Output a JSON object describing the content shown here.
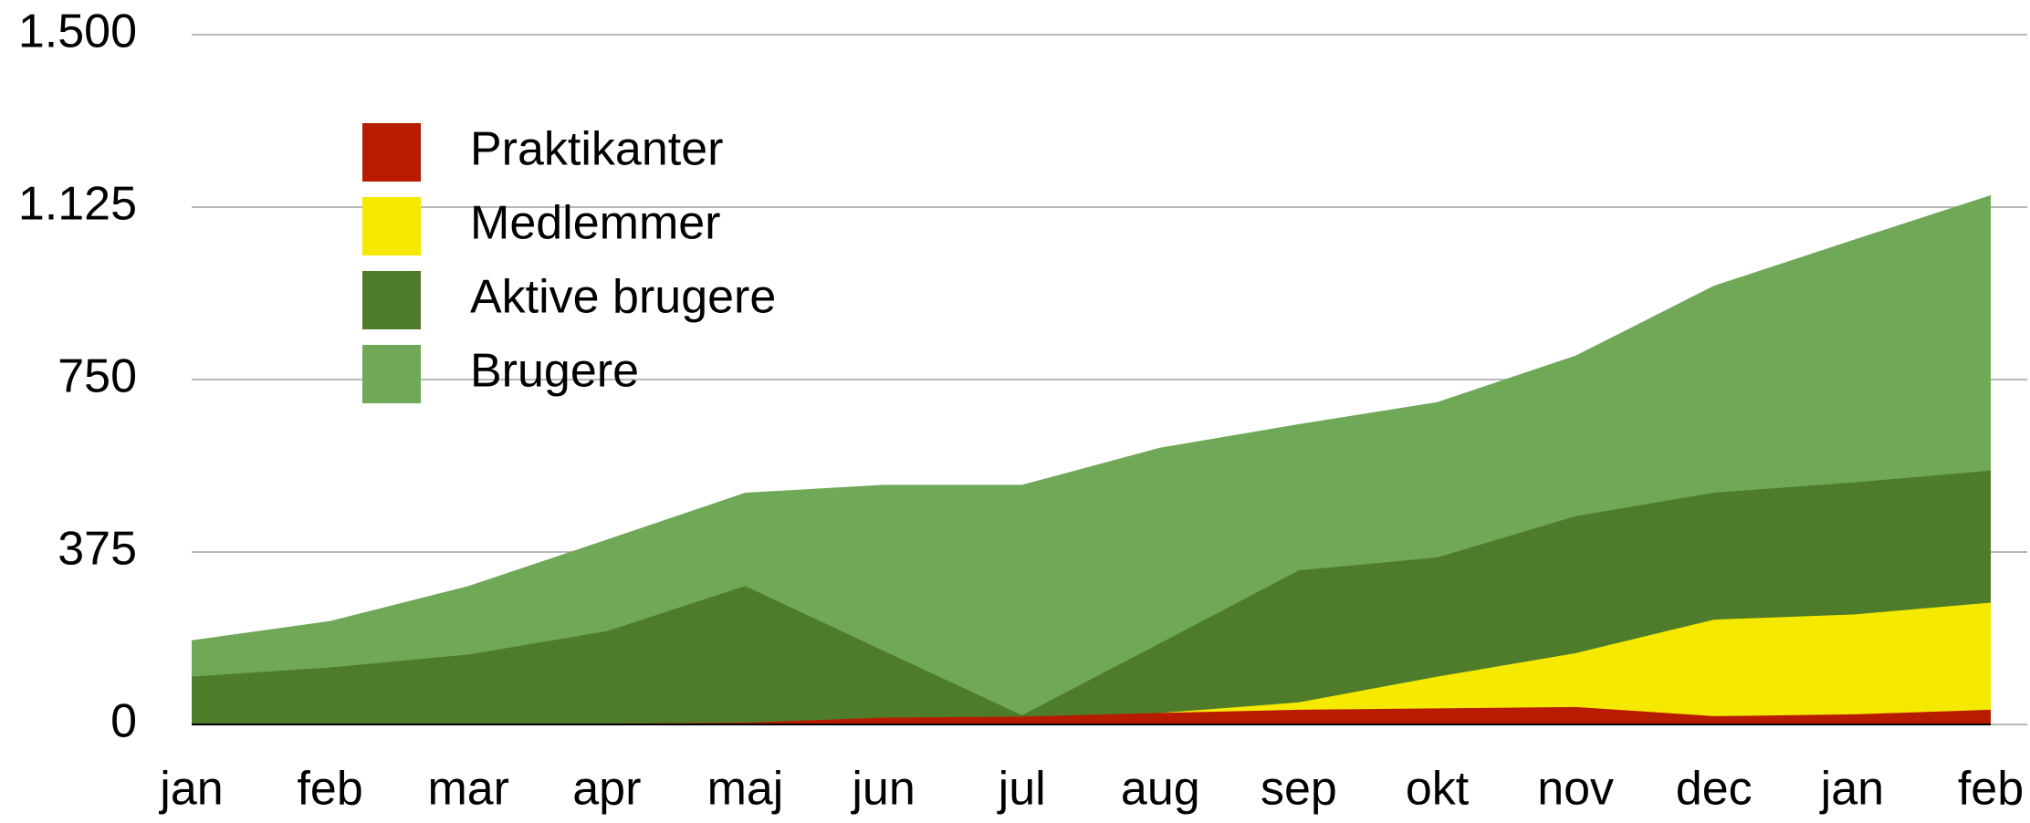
{
  "chart_data": {
    "type": "area",
    "categories": [
      "jan",
      "feb",
      "mar",
      "apr",
      "maj",
      "jun",
      "jul",
      "aug",
      "sep",
      "okt",
      "nov",
      "dec",
      "jan",
      "feb"
    ],
    "series": [
      {
        "name": "Praktikanter",
        "color": "#b81c00",
        "values": [
          0,
          0,
          1,
          2,
          4,
          15,
          17,
          25,
          32,
          35,
          38,
          18,
          22,
          32
        ]
      },
      {
        "name": "Medlemmer",
        "color": "#f5e900",
        "values": [
          0,
          0,
          0,
          0,
          0,
          0,
          0,
          25,
          48,
          104,
          155,
          228,
          239,
          265
        ]
      },
      {
        "name": "Aktive brugere",
        "color": "#4e7c2a",
        "values": [
          104,
          124,
          152,
          203,
          301,
          160,
          20,
          177,
          335,
          363,
          453,
          504,
          526,
          552
        ]
      },
      {
        "name": "Brugere",
        "color": "#6fa857",
        "values": [
          183,
          225,
          301,
          402,
          504,
          521,
          521,
          602,
          653,
          701,
          802,
          954,
          1053,
          1151
        ]
      }
    ],
    "ylim": [
      0,
      1500
    ],
    "yticks": [
      0,
      375,
      750,
      {
        "value": 1125,
        "label": "1.125"
      },
      {
        "value": 1500,
        "label": "1.500"
      }
    ],
    "grid": true,
    "legend": "upper left"
  }
}
